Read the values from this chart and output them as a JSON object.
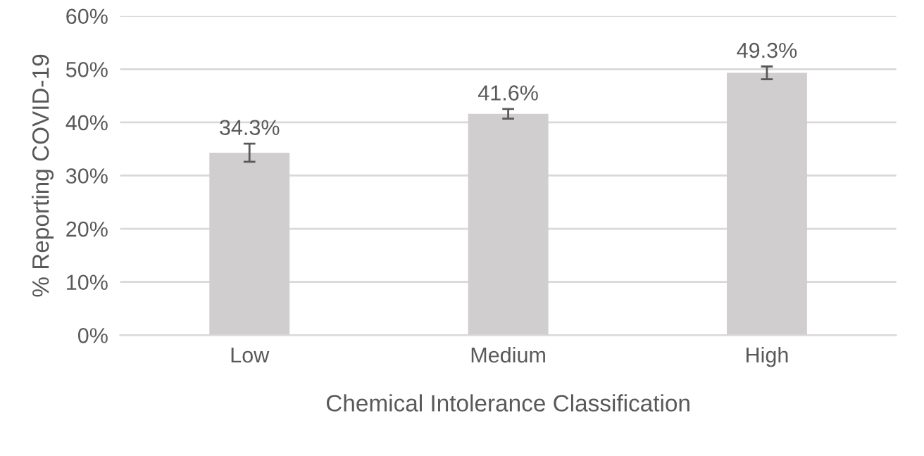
{
  "chart_data": {
    "type": "bar",
    "xlabel": "Chemical Intolerance Classification",
    "ylabel": "% Reporting COVID-19",
    "categories": [
      "Low",
      "Medium",
      "High"
    ],
    "values": [
      34.3,
      41.6,
      49.3
    ],
    "value_labels": [
      "34.3%",
      "41.6%",
      "49.3%"
    ],
    "errors": [
      1.7,
      0.9,
      1.2
    ],
    "color": "#d0cece",
    "ylim": [
      0,
      60
    ],
    "yticks": [
      {
        "value": 0,
        "label": "0%"
      },
      {
        "value": 10,
        "label": "10%"
      },
      {
        "value": 20,
        "label": "20%"
      },
      {
        "value": 30,
        "label": "30%"
      },
      {
        "value": 40,
        "label": "40%"
      },
      {
        "value": 50,
        "label": "50%"
      },
      {
        "value": 60,
        "label": "60%"
      }
    ],
    "grid": "y",
    "legend": false
  }
}
